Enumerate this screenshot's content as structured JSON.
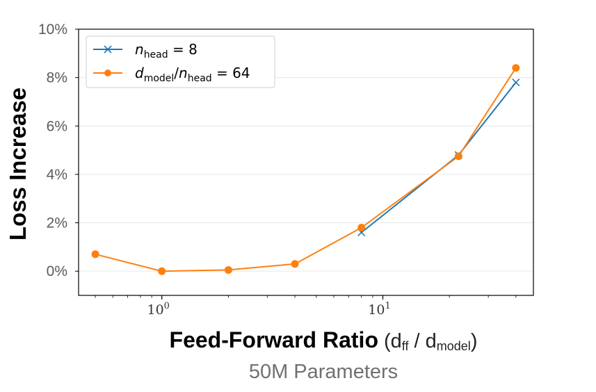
{
  "chart_data": {
    "type": "line",
    "x_scale": "log",
    "xlabel": {
      "main": "Feed-Forward Ratio",
      "paren_open": "(d",
      "sub1": "ff",
      "slash": " / d",
      "sub2": "model",
      "paren_close": ")"
    },
    "ylabel": "Loss Increase",
    "subtitle": "50M Parameters",
    "xlim": [
      0.42,
      48
    ],
    "ylim": [
      -1.0,
      10.0
    ],
    "x_ticks": [
      {
        "value": 1,
        "base": "10",
        "exp": "0"
      },
      {
        "value": 10,
        "base": "10",
        "exp": "1"
      }
    ],
    "y_ticks": [
      {
        "value": 0,
        "label": "0%"
      },
      {
        "value": 2,
        "label": "2%"
      },
      {
        "value": 4,
        "label": "4%"
      },
      {
        "value": 6,
        "label": "6%"
      },
      {
        "value": 8,
        "label": "8%"
      },
      {
        "value": 10,
        "label": "10%"
      }
    ],
    "grid": "horizontal",
    "legend_position": "top-left",
    "series": [
      {
        "name": "n_head = 8",
        "legend": {
          "var": "n",
          "sub": "head",
          "rest": " = 8"
        },
        "color": "#1f77b4",
        "marker": "x",
        "x": [
          8,
          22,
          40
        ],
        "y": [
          1.6,
          4.8,
          7.8
        ]
      },
      {
        "name": "d_model/n_head = 64",
        "legend": {
          "var": "d",
          "sub": "model",
          "mid": "/",
          "var2": "n",
          "sub2": "head",
          "rest": " = 64"
        },
        "color": "#ff7f0e",
        "marker": "o",
        "x": [
          0.5,
          1,
          2,
          4,
          8,
          22,
          40
        ],
        "y": [
          0.7,
          0.0,
          0.05,
          0.3,
          1.8,
          4.75,
          8.4
        ]
      }
    ]
  }
}
